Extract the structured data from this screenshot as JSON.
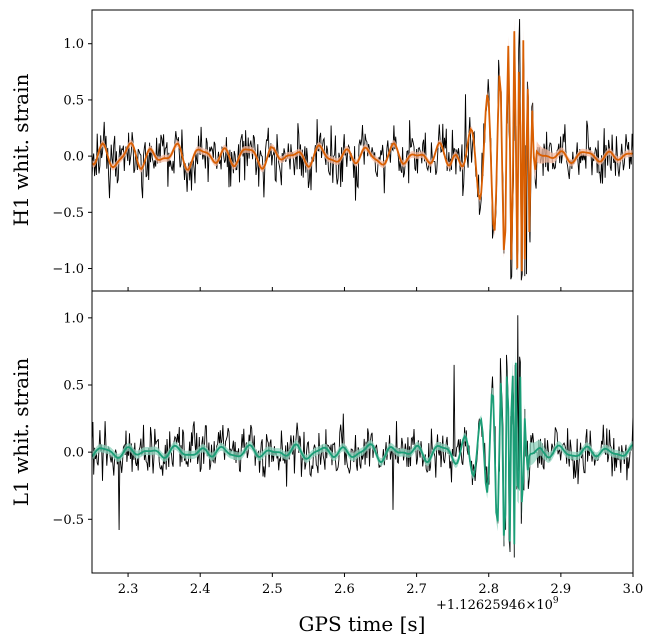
{
  "chart_data": [
    {
      "type": "line",
      "panel": "top",
      "ylabel": "H1 whit. strain",
      "ylim": [
        -1.2,
        1.3
      ],
      "yticks": [
        -1.0,
        -0.5,
        0.0,
        0.5,
        1.0
      ],
      "ytick_labels": [
        "−1.0",
        "−0.5",
        "0.0",
        "0.5",
        "1.0"
      ],
      "series": [
        {
          "style": "data",
          "color": "#000000"
        },
        {
          "style": "model",
          "color": "#d95f02",
          "band_color": "#f4b9a0"
        }
      ]
    },
    {
      "type": "line",
      "panel": "bottom",
      "ylabel": "L1 whit. strain",
      "ylim": [
        -0.9,
        1.2
      ],
      "yticks": [
        -0.5,
        0.0,
        0.5,
        1.0
      ],
      "ytick_labels": [
        "−0.5",
        "0.0",
        "0.5",
        "1.0"
      ],
      "series": [
        {
          "style": "data",
          "color": "#000000"
        },
        {
          "style": "model",
          "color": "#1b9e77",
          "band_color": "#8fd3bd"
        }
      ]
    }
  ],
  "shared_x": {
    "xlabel": "GPS time [s]",
    "xlim": [
      2.25,
      3.0
    ],
    "xticks": [
      2.3,
      2.4,
      2.5,
      2.6,
      2.7,
      2.8,
      2.9,
      3.0
    ],
    "xtick_labels": [
      "2.3",
      "2.4",
      "2.5",
      "2.6",
      "2.7",
      "2.8",
      "2.9",
      "3.0"
    ],
    "offset_label": "+1.12625946×10",
    "offset_exponent": "9"
  }
}
